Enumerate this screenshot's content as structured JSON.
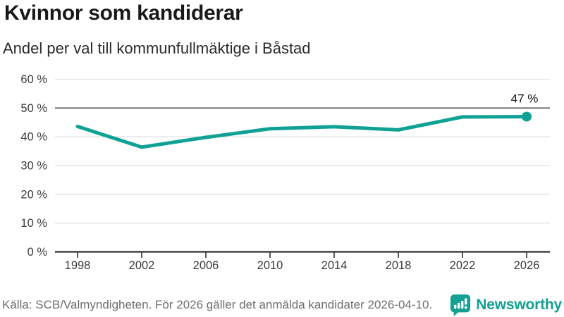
{
  "header": {
    "title": "Kvinnor som kandiderar",
    "subtitle": "Andel per val till kommunfullmäktige i Båstad"
  },
  "chart_data": {
    "type": "line",
    "title": "Kvinnor som kandiderar",
    "subtitle": "Andel per val till kommunfullmäktige i Båstad",
    "x": [
      1998,
      2002,
      2006,
      2010,
      2014,
      2018,
      2022,
      2026
    ],
    "xtick_labels": [
      "1998",
      "2002",
      "2006",
      "2010",
      "2014",
      "2018",
      "2022",
      "2026"
    ],
    "values": [
      43.6,
      36.4,
      39.8,
      42.8,
      43.5,
      42.4,
      46.9,
      47
    ],
    "ylim": [
      0,
      60
    ],
    "ytick_step": 10,
    "ytick_suffix": " %",
    "grid": true,
    "legend": "none",
    "reference_line_y": 50,
    "last_point_label": "47 %",
    "marker_on_last_point": true
  },
  "colors": {
    "accent_teal": "#0FA294",
    "logo_teal": "#14a093",
    "grid_light": "#e1e1e1",
    "reference_line": "#6d6d6d",
    "axis_dark": "#2f2f2f",
    "tick_text": "#3c3c3c",
    "annotation_text": "#141414",
    "title_text": "#191919",
    "muted_text": "#6e6e6e"
  },
  "footer": {
    "source": "Källa: SCB/Valmyndigheten. För 2026 gäller det anmälda kandidater 2026-04-10.",
    "brand": "Newsworthy"
  },
  "icons": {
    "logo": "newsworthy-speech-bubble-bar-chart-icon"
  }
}
